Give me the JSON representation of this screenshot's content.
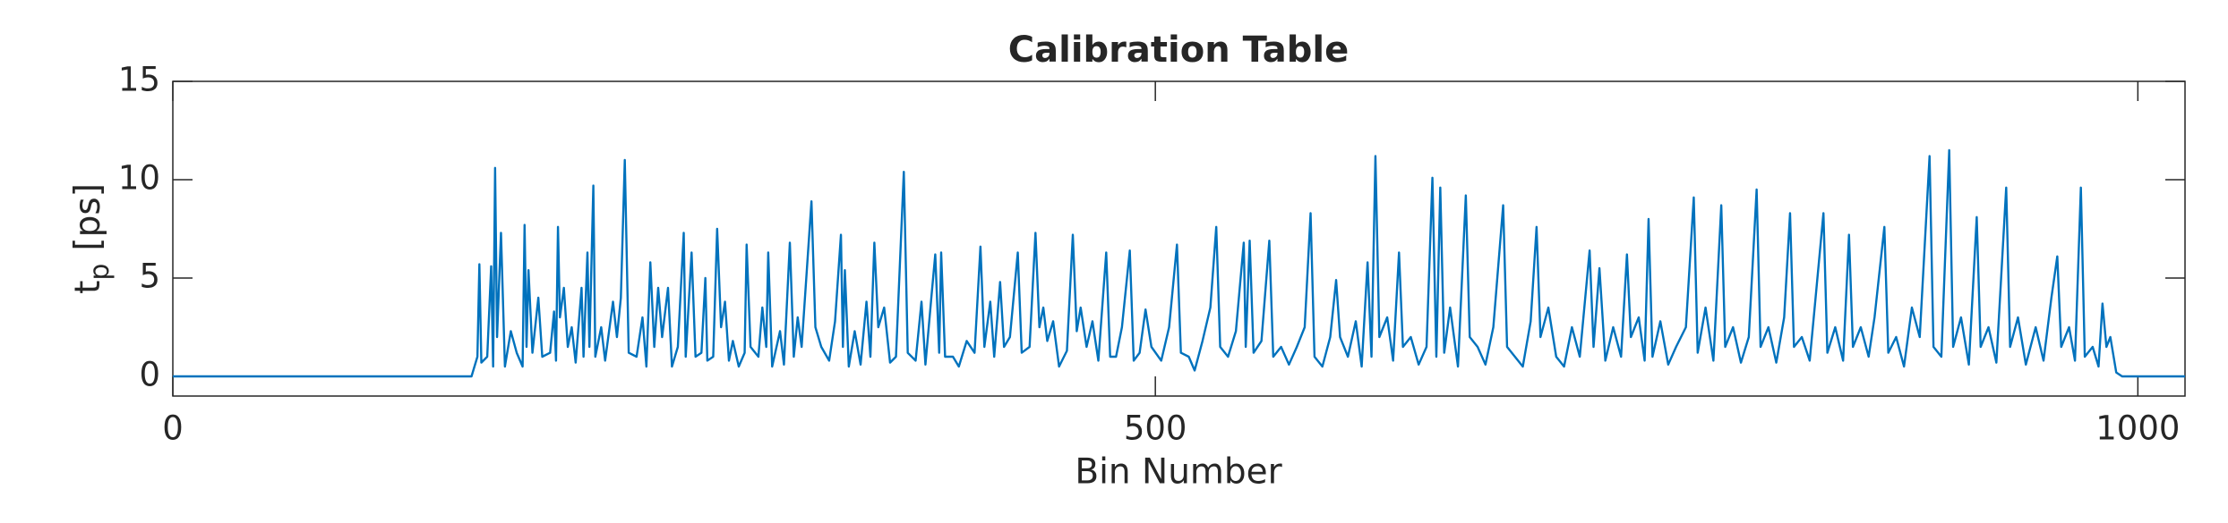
{
  "chart_data": {
    "type": "line",
    "title": "Calibration Table",
    "xlabel": "Bin Number",
    "ylabel": {
      "main": "t",
      "sub": "p",
      "rest": "[ps]"
    },
    "color": "#0072bd",
    "xlim": [
      0,
      1024
    ],
    "xticks": [
      0,
      500,
      1000
    ],
    "ylim": [
      -1,
      15
    ],
    "yticks": [
      0,
      5,
      10,
      15
    ],
    "x": [
      0,
      152,
      155,
      156,
      157,
      160,
      162,
      163,
      164,
      165,
      167,
      169,
      172,
      175,
      178,
      179,
      180,
      181,
      183,
      186,
      188,
      192,
      194,
      195,
      196,
      197,
      199,
      201,
      203,
      205,
      208,
      209,
      211,
      212,
      214,
      215,
      218,
      220,
      224,
      226,
      228,
      230,
      232,
      236,
      239,
      241,
      243,
      245,
      247,
      249,
      252,
      254,
      257,
      260,
      261,
      264,
      266,
      269,
      271,
      272,
      275,
      277,
      279,
      281,
      283,
      285,
      288,
      291,
      292,
      294,
      298,
      300,
      302,
      303,
      305,
      309,
      311,
      314,
      316,
      318,
      320,
      325,
      327,
      330,
      334,
      337,
      340,
      341,
      342,
      344,
      347,
      350,
      353,
      355,
      357,
      359,
      362,
      365,
      368,
      372,
      374,
      378,
      381,
      383,
      386,
      388,
      390,
      391,
      393,
      397,
      400,
      404,
      408,
      411,
      413,
      416,
      418,
      421,
      423,
      426,
      430,
      432,
      436,
      439,
      441,
      443,
      445,
      448,
      451,
      455,
      458,
      460,
      462,
      465,
      468,
      471,
      475,
      477,
      480,
      483,
      487,
      489,
      492,
      495,
      498,
      503,
      507,
      511,
      513,
      517,
      520,
      524,
      528,
      531,
      533,
      537,
      541,
      545,
      546,
      548,
      550,
      554,
      558,
      560,
      564,
      568,
      572,
      576,
      579,
      581,
      585,
      589,
      592,
      594,
      598,
      602,
      605,
      608,
      610,
      612,
      614,
      618,
      621,
      624,
      626,
      630,
      634,
      638,
      641,
      643,
      645,
      647,
      650,
      654,
      658,
      660,
      664,
      668,
      672,
      677,
      679,
      683,
      687,
      691,
      694,
      696,
      700,
      704,
      708,
      712,
      716,
      721,
      723,
      726,
      729,
      733,
      737,
      740,
      742,
      746,
      749,
      751,
      753,
      757,
      761,
      765,
      770,
      774,
      776,
      780,
      784,
      788,
      790,
      794,
      798,
      802,
      806,
      808,
      812,
      816,
      820,
      823,
      825,
      829,
      833,
      836,
      840,
      842,
      846,
      850,
      853,
      855,
      859,
      863,
      866,
      871,
      873,
      877,
      881,
      885,
      889,
      894,
      896,
      900,
      904,
      906,
      910,
      914,
      918,
      920,
      924,
      928,
      933,
      935,
      939,
      943,
      948,
      952,
      956,
      959,
      961,
      965,
      968,
      971,
      973,
      977,
      980,
      982,
      984,
      986,
      989,
      992,
      1024
    ],
    "values": [
      0,
      0,
      1,
      5.7,
      0.7,
      1,
      5.6,
      0.5,
      10.6,
      2,
      7.3,
      0.5,
      2.3,
      1.2,
      0.5,
      7.7,
      1.5,
      5.4,
      1.2,
      4,
      1,
      1.2,
      3.3,
      0.8,
      7.6,
      3,
      4.5,
      1.5,
      2.5,
      0.7,
      4.5,
      1,
      6.3,
      1.5,
      9.7,
      1,
      2.5,
      0.8,
      3.8,
      2,
      4,
      11.0,
      1.2,
      1,
      3,
      0.5,
      5.8,
      1.5,
      4.5,
      2,
      4.5,
      0.5,
      1.5,
      7.3,
      1,
      6.3,
      1,
      1.2,
      5.0,
      0.8,
      1,
      7.5,
      2.5,
      3.8,
      0.8,
      1.8,
      0.5,
      1.2,
      6.7,
      1.5,
      1,
      3.5,
      1.5,
      6.3,
      0.5,
      2.3,
      0.6,
      6.8,
      1,
      3,
      1.5,
      8.9,
      2.5,
      1.5,
      0.8,
      2.8,
      7.2,
      1.5,
      5.4,
      0.5,
      2.3,
      0.6,
      3.8,
      1,
      6.8,
      2.5,
      3.5,
      0.7,
      1,
      10.4,
      1.2,
      0.8,
      3.8,
      0.6,
      4,
      6.2,
      1.2,
      6.3,
      1,
      1,
      0.5,
      1.8,
      1.2,
      6.6,
      1.5,
      3.8,
      1,
      4.8,
      1.5,
      2,
      6.3,
      1.2,
      1.5,
      7.3,
      2.5,
      3.5,
      1.8,
      2.8,
      0.5,
      1.3,
      7.2,
      2.3,
      3.5,
      1.5,
      2.8,
      0.8,
      6.3,
      1,
      1,
      2.5,
      6.4,
      0.8,
      1.2,
      3.4,
      1.5,
      0.8,
      2.5,
      6.7,
      1.2,
      1,
      0.3,
      1.8,
      3.5,
      7.6,
      1.5,
      1,
      2.3,
      6.8,
      1.5,
      6.9,
      1.2,
      1.8,
      6.9,
      1,
      1.5,
      0.6,
      1.5,
      2.5,
      8.3,
      1,
      0.5,
      2,
      4.9,
      2,
      1,
      2.8,
      0.5,
      5.8,
      1,
      11.2,
      2,
      3,
      0.8,
      6.3,
      1.5,
      2,
      0.6,
      1.5,
      10.1,
      1,
      9.6,
      1.2,
      3.5,
      0.5,
      9.2,
      2,
      1.5,
      0.6,
      2.5,
      8.7,
      1.5,
      1,
      0.5,
      2.8,
      7.6,
      2,
      3.5,
      1,
      0.5,
      2.5,
      1,
      6.4,
      1.5,
      5.5,
      0.8,
      2.5,
      1,
      6.2,
      2,
      3,
      0.8,
      8.0,
      1,
      2.8,
      0.6,
      1.5,
      2.5,
      9.1,
      1.2,
      3.5,
      0.8,
      8.7,
      1.5,
      2.5,
      0.7,
      2,
      9.5,
      1.5,
      2.5,
      0.7,
      3,
      8.3,
      1.5,
      2,
      0.8,
      4,
      8.3,
      1.2,
      2.5,
      0.8,
      7.2,
      1.5,
      2.5,
      1,
      3,
      7.6,
      1.2,
      2,
      0.5,
      3.5,
      2,
      11.2,
      1.5,
      1,
      11.5,
      1.5,
      3,
      0.6,
      8.1,
      1.5,
      2.5,
      0.7,
      9.6,
      1.5,
      3,
      0.6,
      2.5,
      0.8,
      4,
      6.1,
      1.5,
      2.5,
      0.8,
      9.6,
      1,
      1.5,
      0.5,
      3.7,
      1.5,
      2,
      0.2,
      0,
      0
    ]
  }
}
